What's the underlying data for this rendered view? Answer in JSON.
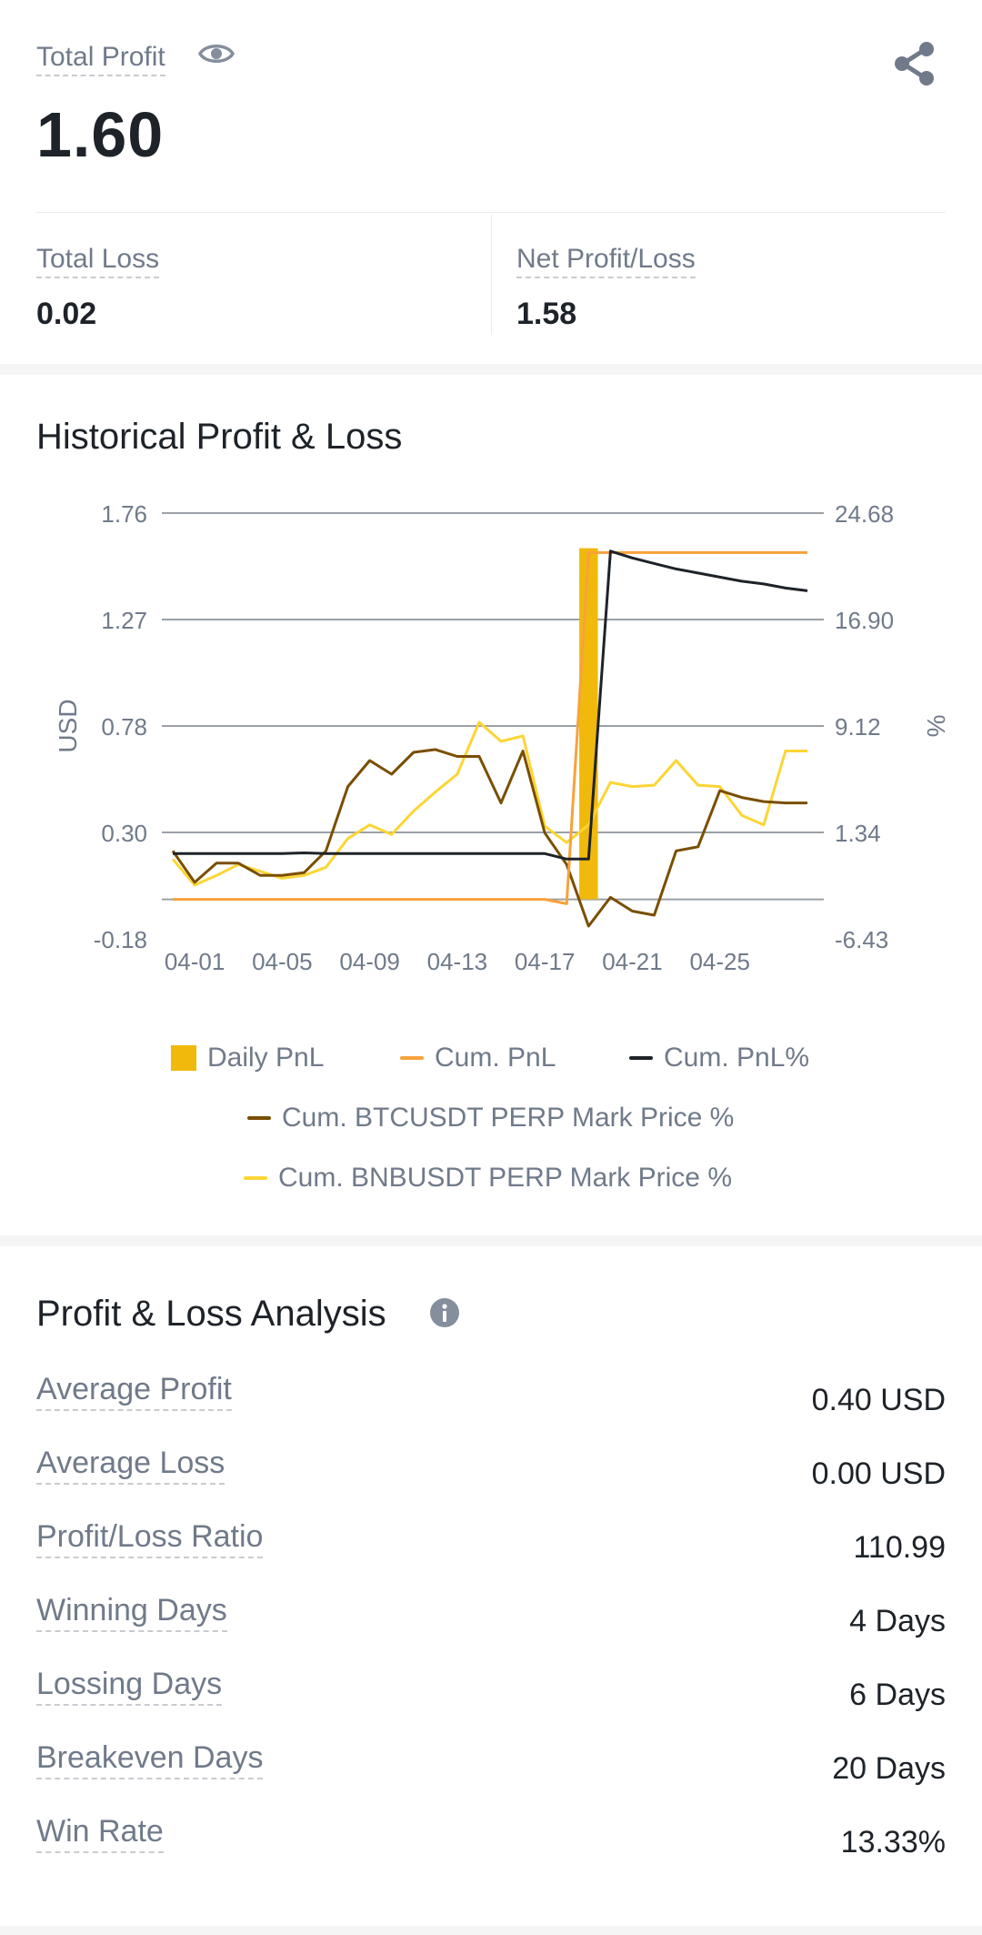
{
  "summary": {
    "total_profit_label": "Total Profit",
    "total_profit_value": "1.60",
    "total_loss_label": "Total Loss",
    "total_loss_value": "0.02",
    "net_label": "Net Profit/Loss",
    "net_value": "1.58"
  },
  "icons": {
    "eye": "eye-icon",
    "share": "share-icon",
    "info": "info-icon"
  },
  "chart_section": {
    "title": "Historical Profit & Loss"
  },
  "chart_data": {
    "type": "line",
    "title": "",
    "xlabel": "",
    "ylabel_left": "USD",
    "ylabel_right": "%",
    "ylim_left": [
      -0.18,
      1.76
    ],
    "ylim_right": [
      -6.43,
      24.68
    ],
    "yticks_left": [
      "1.76",
      "1.27",
      "0.78",
      "0.30",
      "-0.18"
    ],
    "yticks_right": [
      "24.68",
      "16.90",
      "9.12",
      "1.34",
      "-6.43"
    ],
    "xticks": [
      "04-01",
      "04-05",
      "04-09",
      "04-13",
      "04-17",
      "04-21",
      "04-25"
    ],
    "x": [
      "03-31",
      "04-01",
      "04-02",
      "04-03",
      "04-04",
      "04-05",
      "04-06",
      "04-07",
      "04-08",
      "04-09",
      "04-10",
      "04-11",
      "04-12",
      "04-13",
      "04-14",
      "04-15",
      "04-16",
      "04-17",
      "04-18",
      "04-19",
      "04-20",
      "04-21",
      "04-22",
      "04-23",
      "04-24",
      "04-25",
      "04-26",
      "04-27",
      "04-28",
      "04-29"
    ],
    "grid": true,
    "legend_position": "bottom",
    "series": [
      {
        "name": "Daily PnL",
        "type": "bar",
        "axis": "left",
        "color": "#f0b90b",
        "values": [
          0,
          0,
          0,
          0,
          0,
          0,
          0,
          0,
          0,
          0,
          0,
          0,
          0,
          0,
          0,
          0,
          0,
          0,
          0,
          1.6,
          0,
          0,
          0,
          0,
          0,
          0,
          0,
          0,
          0,
          0
        ]
      },
      {
        "name": "Cum. PnL",
        "type": "line",
        "axis": "left",
        "color": "#f7a23b",
        "values": [
          0,
          0,
          0,
          0,
          0,
          0,
          0,
          0,
          0,
          0,
          0,
          0,
          0,
          0,
          0,
          0,
          0,
          0,
          -0.02,
          1.58,
          1.58,
          1.58,
          1.58,
          1.58,
          1.58,
          1.58,
          1.58,
          1.58,
          1.58,
          1.58
        ]
      },
      {
        "name": "Cum. PnL%",
        "type": "line",
        "axis": "right",
        "color": "#1e2329",
        "values": [
          -0.2,
          -0.2,
          -0.2,
          -0.2,
          -0.2,
          -0.2,
          -0.15,
          -0.2,
          -0.2,
          -0.2,
          -0.2,
          -0.2,
          -0.2,
          -0.2,
          -0.2,
          -0.2,
          -0.2,
          -0.2,
          -0.6,
          -0.6,
          21.9,
          21.4,
          21.0,
          20.6,
          20.3,
          20.0,
          19.7,
          19.5,
          19.2,
          19.0
        ]
      },
      {
        "name": "Cum. BTCUSDT PERP Mark Price %",
        "type": "line",
        "axis": "right",
        "color": "#7a4e00",
        "values": [
          0.0,
          -2.3,
          -0.9,
          -0.9,
          -1.8,
          -1.8,
          -1.6,
          0,
          4.7,
          6.6,
          5.6,
          7.2,
          7.4,
          6.9,
          6.9,
          3.5,
          7.3,
          1.3,
          -1.0,
          -5.5,
          -3.4,
          -4.4,
          -4.7,
          0,
          0.3,
          4.4,
          3.9,
          3.6,
          3.5,
          3.5
        ]
      },
      {
        "name": "Cum. BNBUSDT PERP Mark Price %",
        "type": "line",
        "axis": "right",
        "color": "#fcd535",
        "values": [
          -0.6,
          -2.5,
          -1.8,
          -1.0,
          -1.5,
          -2.0,
          -1.8,
          -1.2,
          0.9,
          1.9,
          1.2,
          2.9,
          4.3,
          5.6,
          9.4,
          8.0,
          8.4,
          1.8,
          0.6,
          1.9,
          5.0,
          4.7,
          4.8,
          6.6,
          4.8,
          4.7,
          2.6,
          1.9,
          7.3,
          7.3
        ]
      }
    ]
  },
  "analysis": {
    "title": "Profit & Loss Analysis",
    "rows": [
      {
        "label": "Average Profit",
        "value": "0.40 USD"
      },
      {
        "label": "Average Loss",
        "value": "0.00 USD"
      },
      {
        "label": "Profit/Loss Ratio",
        "value": "110.99"
      },
      {
        "label": "Winning Days",
        "value": "4 Days"
      },
      {
        "label": "Lossing Days",
        "value": "6 Days"
      },
      {
        "label": "Breakeven Days",
        "value": "20 Days"
      },
      {
        "label": "Win Rate",
        "value": "13.33%"
      }
    ]
  }
}
